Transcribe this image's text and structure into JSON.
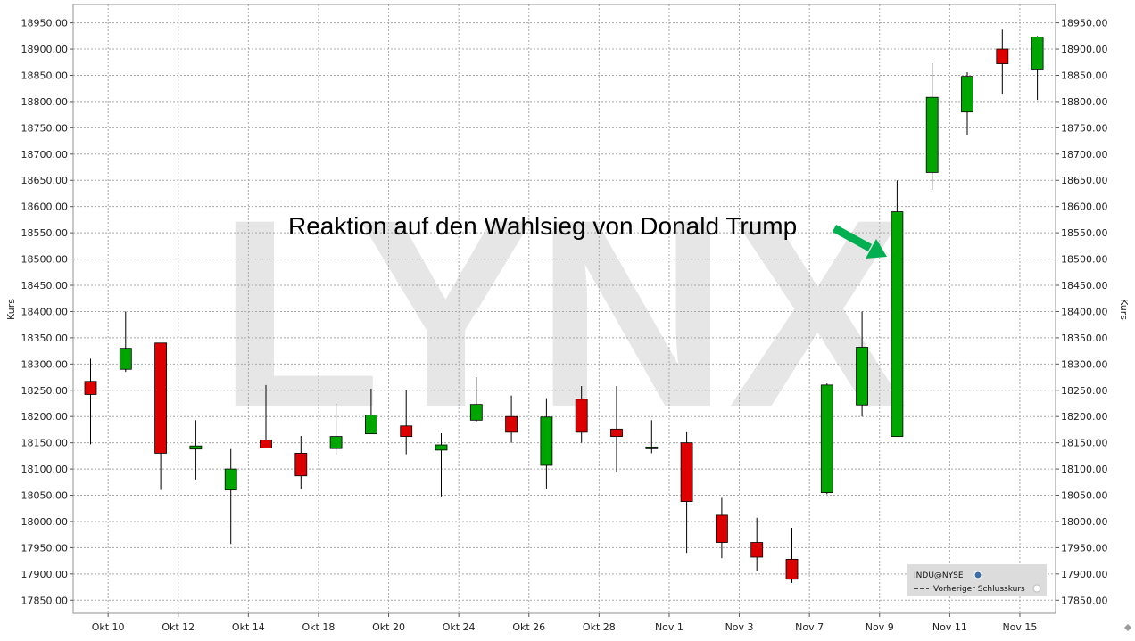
{
  "colors": {
    "up": "#00a600",
    "down": "#dd0000",
    "grid": "#a8a8a8",
    "legend_bg": "#dcdcdc",
    "arrow": "#00b050",
    "watermark": "#e6e6e6"
  },
  "watermark": "LYNX",
  "annotation": "Reaktion auf den Wahlsieg von Donald Trump",
  "legend": {
    "symbol": "INDU@NYSE",
    "prev_close": "Vorheriger Schlusskurs"
  },
  "chart_data": {
    "type": "candlestick",
    "ylabel": "Kurs",
    "ylim": [
      17825,
      18985
    ],
    "yticks": [
      17850,
      17900,
      17950,
      18000,
      18050,
      18100,
      18150,
      18200,
      18250,
      18300,
      18350,
      18400,
      18450,
      18500,
      18550,
      18600,
      18650,
      18700,
      18750,
      18800,
      18850,
      18900,
      18950
    ],
    "ytick_labels": [
      "17850.00",
      "17900.00",
      "17950.00",
      "18000.00",
      "18050.00",
      "18100.00",
      "18150.00",
      "18200.00",
      "18250.00",
      "18300.00",
      "18350.00",
      "18400.00",
      "18450.00",
      "18500.00",
      "18550.00",
      "18600.00",
      "18650.00",
      "18700.00",
      "18750.00",
      "18800.00",
      "18850.00",
      "18900.00",
      "18950.00"
    ],
    "xtick_labels": [
      "Okt 10",
      "Okt 12",
      "Okt 14",
      "Okt 18",
      "Okt 20",
      "Okt 24",
      "Okt 26",
      "Okt 28",
      "Nov 1",
      "Nov 3",
      "Nov 7",
      "Nov 9",
      "Nov 11",
      "Nov 15"
    ],
    "grid": true,
    "candles": [
      {
        "date": "Okt 10",
        "open": 18267,
        "high": 18310,
        "low": 18147,
        "close": 18242
      },
      {
        "date": "Okt 11",
        "open": 18290,
        "high": 18400,
        "low": 18285,
        "close": 18330
      },
      {
        "date": "Okt 12",
        "open": 18340,
        "high": 18340,
        "low": 18060,
        "close": 18130
      },
      {
        "date": "Okt 13",
        "open": 18138,
        "high": 18193,
        "low": 18080,
        "close": 18144
      },
      {
        "date": "Okt 14",
        "open": 18060,
        "high": 18138,
        "low": 17957,
        "close": 18100
      },
      {
        "date": "Okt 17",
        "open": 18155,
        "high": 18260,
        "low": 18140,
        "close": 18140
      },
      {
        "date": "Okt 18",
        "open": 18130,
        "high": 18163,
        "low": 18062,
        "close": 18087
      },
      {
        "date": "Okt 19",
        "open": 18139,
        "high": 18225,
        "low": 18128,
        "close": 18162
      },
      {
        "date": "Okt 20",
        "open": 18167,
        "high": 18253,
        "low": 18167,
        "close": 18203
      },
      {
        "date": "Okt 21",
        "open": 18182,
        "high": 18250,
        "low": 18128,
        "close": 18162
      },
      {
        "date": "Okt 24",
        "open": 18136,
        "high": 18168,
        "low": 18048,
        "close": 18146
      },
      {
        "date": "Okt 25",
        "open": 18193,
        "high": 18275,
        "low": 18190,
        "close": 18223
      },
      {
        "date": "Okt 26",
        "open": 18200,
        "high": 18240,
        "low": 18150,
        "close": 18170
      },
      {
        "date": "Okt 27",
        "open": 18107,
        "high": 18235,
        "low": 18063,
        "close": 18199
      },
      {
        "date": "Okt 28",
        "open": 18233,
        "high": 18258,
        "low": 18150,
        "close": 18170
      },
      {
        "date": "Okt 31",
        "open": 18176,
        "high": 18258,
        "low": 18095,
        "close": 18162
      },
      {
        "date": "Nov 1",
        "open": 18140,
        "high": 18193,
        "low": 18130,
        "close": 18142
      },
      {
        "date": "Nov 2",
        "open": 18150,
        "high": 18170,
        "low": 17940,
        "close": 18038
      },
      {
        "date": "Nov 3",
        "open": 18012,
        "high": 18045,
        "low": 17930,
        "close": 17960
      },
      {
        "date": "Nov 4",
        "open": 17960,
        "high": 18007,
        "low": 17905,
        "close": 17932
      },
      {
        "date": "Nov 7",
        "open": 17928,
        "high": 17988,
        "low": 17883,
        "close": 17890
      },
      {
        "date": "Nov 8",
        "open": 18055,
        "high": 18263,
        "low": 18052,
        "close": 18260
      },
      {
        "date": "Nov 9",
        "open": 18222,
        "high": 18400,
        "low": 18200,
        "close": 18332
      },
      {
        "date": "Nov 10",
        "open": 18162,
        "high": 18650,
        "low": 18162,
        "close": 18590
      },
      {
        "date": "Nov 11",
        "open": 18665,
        "high": 18873,
        "low": 18632,
        "close": 18808
      },
      {
        "date": "Nov 14",
        "open": 18780,
        "high": 18856,
        "low": 18737,
        "close": 18848
      },
      {
        "date": "Nov 15",
        "open": 18900,
        "high": 18937,
        "low": 18815,
        "close": 18872
      },
      {
        "date": "Nov 16",
        "open": 18862,
        "high": 18925,
        "low": 18803,
        "close": 18923
      }
    ]
  }
}
